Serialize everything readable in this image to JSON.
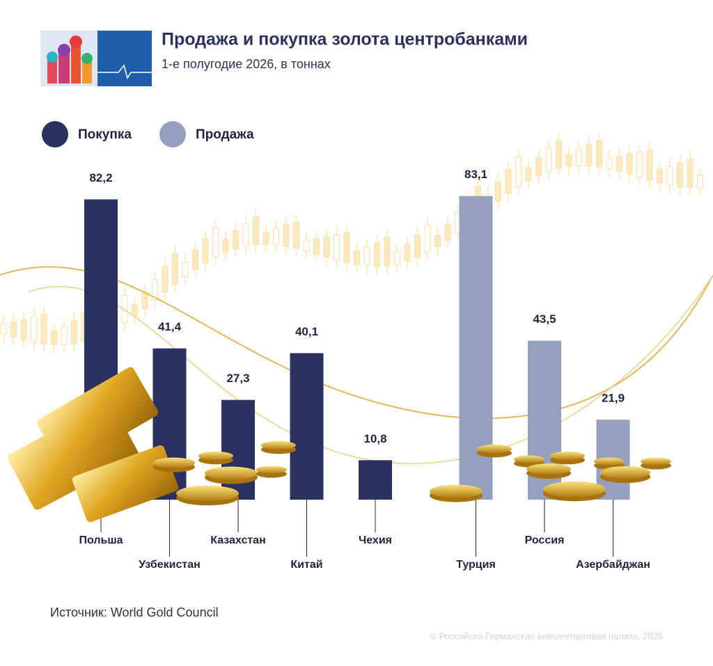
{
  "chart_data": {
    "type": "bar",
    "title": "Продажа и покупка золота центробанками",
    "subtitle": "1-е полугодие 2026, в тоннах",
    "categories": [
      "Польша",
      "Узбекистан",
      "Казахстан",
      "Китай",
      "Чехия",
      "Турция",
      "Россия",
      "Азербайджан"
    ],
    "series": [
      {
        "name": "Покупка",
        "color": "#2b3160",
        "values": [
          82.2,
          41.4,
          27.3,
          40.1,
          10.8,
          null,
          null,
          null
        ],
        "value_labels": [
          "82,2",
          "41,4",
          "27,3",
          "40,1",
          "10,8",
          null,
          null,
          null
        ]
      },
      {
        "name": "Продажа",
        "color": "#94a0bd",
        "values": [
          null,
          null,
          null,
          null,
          null,
          83.1,
          43.5,
          21.9
        ],
        "value_labels": [
          null,
          null,
          null,
          null,
          null,
          "83,1",
          "43,5",
          "21,9"
        ]
      }
    ],
    "source": "Источник: World Gold Council",
    "copyright": "© Российско-Германская внешнеторговая палата, 2026"
  }
}
